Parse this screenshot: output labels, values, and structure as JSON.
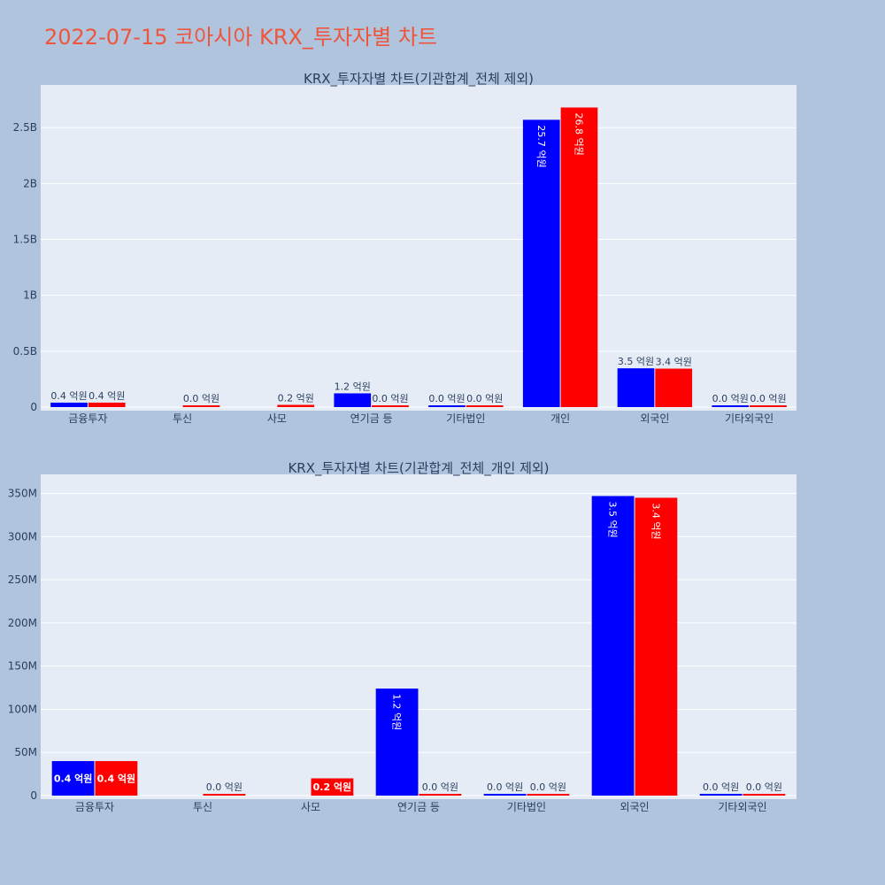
{
  "title": "2022-07-15 코아시아 KRX_투자자별 차트",
  "colors": {
    "buy": "#0000ff",
    "sell": "#ff0000",
    "plot_bg": "#e5ecf6",
    "page_bg": "#b0c4de",
    "title": "#ef553b"
  },
  "chart_data": [
    {
      "type": "bar",
      "title": "KRX_투자자별 차트(기관합계_전체 제외)",
      "categories": [
        "금융투자",
        "투신",
        "사모",
        "연기금 등",
        "기타법인",
        "개인",
        "외국인",
        "기타외국인"
      ],
      "ylim": [
        0,
        2850000000
      ],
      "yticks": [
        0,
        500000000,
        1000000000,
        1500000000,
        2000000000,
        2500000000
      ],
      "ytick_labels": [
        "0",
        "0.5B",
        "1B",
        "1.5B",
        "2B",
        "2.5B"
      ],
      "grid": true,
      "series": [
        {
          "color": "#0000ff",
          "values": [
            40000000,
            0,
            0,
            123000000,
            2000000,
            2570000000,
            347000000,
            1000000
          ],
          "labels": [
            "0.4 억원",
            "",
            "",
            "1.2 억원",
            "0.0 억원",
            "25.7 억원",
            "3.5 억원",
            "0.0 억원"
          ]
        },
        {
          "color": "#ff0000",
          "values": [
            40000000,
            2000000,
            20000000,
            1000000,
            1000000,
            2680000000,
            344000000,
            1000000
          ],
          "labels": [
            "0.4 억원",
            "0.0 억원",
            "0.2 억원",
            "0.0 억원",
            "0.0 억원",
            "26.8 억원",
            "3.4 억원",
            "0.0 억원"
          ]
        }
      ]
    },
    {
      "type": "bar",
      "title": "KRX_투자자별 차트(기관합계_전체_개인 제외)",
      "categories": [
        "금융투자",
        "투신",
        "사모",
        "연기금 등",
        "기타법인",
        "외국인",
        "기타외국인"
      ],
      "ylim": [
        0,
        368000000
      ],
      "yticks": [
        0,
        50000000,
        100000000,
        150000000,
        200000000,
        250000000,
        300000000,
        350000000
      ],
      "ytick_labels": [
        "0",
        "50M",
        "100M",
        "150M",
        "200M",
        "250M",
        "300M",
        "350M"
      ],
      "grid": true,
      "series": [
        {
          "color": "#0000ff",
          "values": [
            40000000,
            0,
            0,
            124000000,
            1500000,
            347000000,
            700000
          ],
          "labels": [
            "0.4 억원",
            "",
            "",
            "1.2 억원",
            "0.0 억원",
            "3.5 억원",
            "0.0 억원"
          ]
        },
        {
          "color": "#ff0000",
          "values": [
            40000000,
            2000000,
            20000000,
            700000,
            1500000,
            345000000,
            2000000
          ],
          "labels": [
            "0.4 억원",
            "0.0 억원",
            "0.2 억원",
            "0.0 억원",
            "0.0 억원",
            "3.4 억원",
            "0.0 억원"
          ]
        }
      ]
    }
  ]
}
